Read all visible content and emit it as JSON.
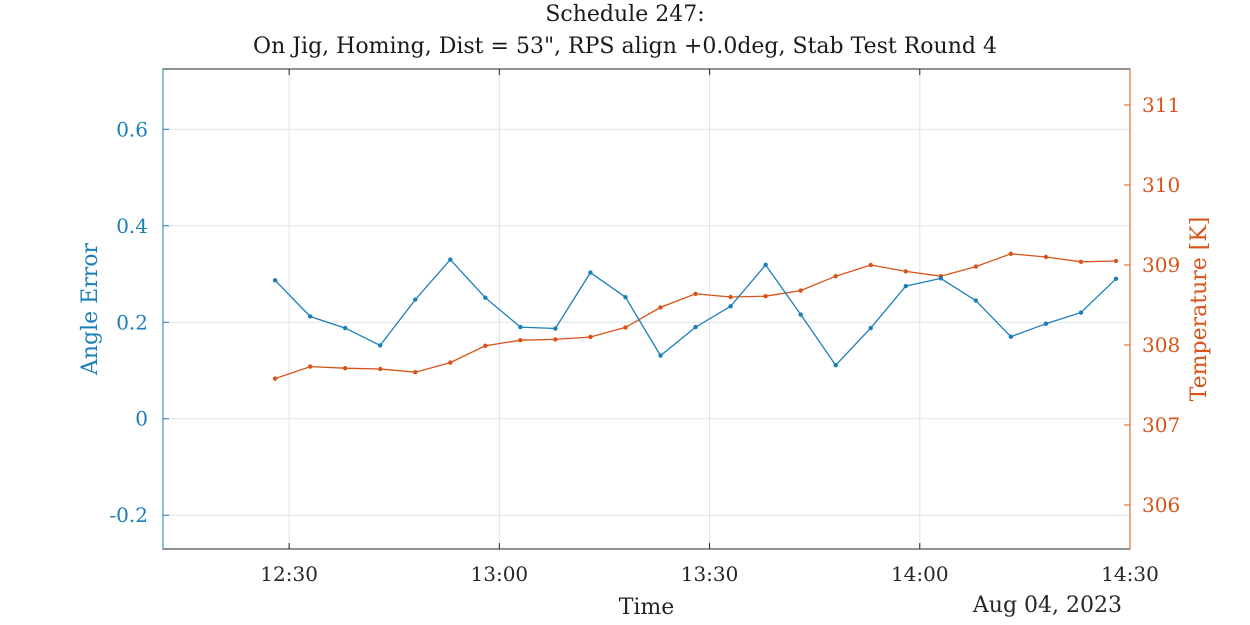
{
  "chart_data": {
    "type": "line",
    "title": "Schedule 247:",
    "subtitle": "On Jig, Homing, Dist = 53\", RPS align +0.0deg, Stab Test Round 4",
    "xlabel": "Time",
    "x_secondary_label": "Aug 04, 2023",
    "x_ticks": [
      "12:30",
      "13:00",
      "13:30",
      "14:00",
      "14:30"
    ],
    "x_range": [
      "12:12",
      "14:30"
    ],
    "x": [
      "12:28",
      "12:33",
      "12:38",
      "12:43",
      "12:48",
      "12:53",
      "12:58",
      "13:03",
      "13:08",
      "13:13",
      "13:18",
      "13:23",
      "13:28",
      "13:33",
      "13:38",
      "13:43",
      "13:48",
      "13:53",
      "13:58",
      "14:03",
      "14:08",
      "14:13",
      "14:18",
      "14:23",
      "14:28"
    ],
    "y_left": {
      "label": "Angle Error",
      "range": [
        -0.27,
        0.725
      ],
      "ticks": [
        "-0.2",
        "0",
        "0.2",
        "0.4",
        "0.6"
      ],
      "color": "#1a7fb8"
    },
    "y_right": {
      "label": "Temperature [K]",
      "range": [
        305.45,
        311.45
      ],
      "ticks": [
        "306",
        "307",
        "308",
        "309",
        "310",
        "311"
      ],
      "color": "#d95319"
    },
    "grid": true,
    "series": [
      {
        "axis": "left",
        "color": "#1a7fb8",
        "values": [
          0.287,
          0.212,
          0.188,
          0.152,
          0.247,
          0.33,
          0.251,
          0.19,
          0.187,
          0.303,
          0.252,
          0.131,
          0.19,
          0.233,
          0.319,
          0.216,
          0.111,
          0.188,
          0.275,
          0.291,
          0.245,
          0.17,
          0.197,
          0.22,
          0.29
        ]
      },
      {
        "axis": "right",
        "color": "#d95319",
        "values": [
          307.58,
          307.73,
          307.71,
          307.7,
          307.66,
          307.78,
          307.99,
          308.06,
          308.07,
          308.1,
          308.22,
          308.47,
          308.64,
          308.6,
          308.61,
          308.68,
          308.86,
          309.0,
          308.92,
          308.86,
          308.98,
          309.14,
          309.1,
          309.04,
          309.05
        ]
      }
    ]
  }
}
